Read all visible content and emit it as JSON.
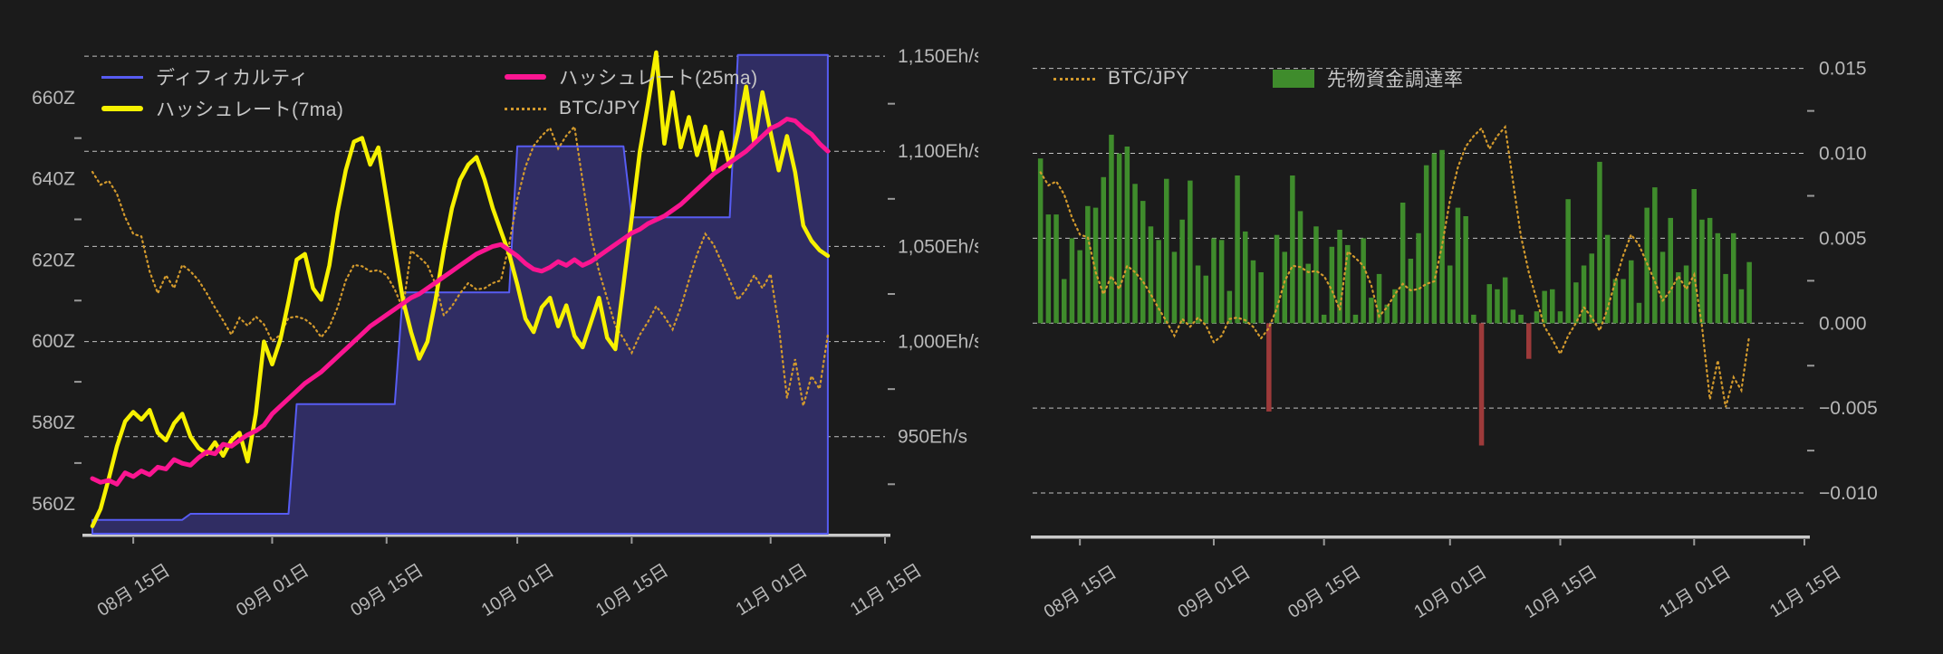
{
  "page": {
    "background": "#1b1b1b"
  },
  "chart_data": {
    "type": [
      "area",
      "line",
      "bar"
    ],
    "dates": [
      "08/10",
      "08/11",
      "08/12",
      "08/13",
      "08/14",
      "08/15",
      "08/16",
      "08/17",
      "08/18",
      "08/19",
      "08/20",
      "08/21",
      "08/22",
      "08/23",
      "08/24",
      "08/25",
      "08/26",
      "08/27",
      "08/28",
      "08/29",
      "08/30",
      "08/31",
      "09/01",
      "09/02",
      "09/03",
      "09/04",
      "09/05",
      "09/06",
      "09/07",
      "09/08",
      "09/09",
      "09/10",
      "09/11",
      "09/12",
      "09/13",
      "09/14",
      "09/15",
      "09/16",
      "09/17",
      "09/18",
      "09/19",
      "09/20",
      "09/21",
      "09/22",
      "09/23",
      "09/24",
      "09/25",
      "09/26",
      "09/27",
      "09/28",
      "09/29",
      "09/30",
      "10/01",
      "10/02",
      "10/03",
      "10/04",
      "10/05",
      "10/06",
      "10/07",
      "10/08",
      "10/09",
      "10/10",
      "10/11",
      "10/12",
      "10/13",
      "10/14",
      "10/15",
      "10/16",
      "10/17",
      "10/18",
      "10/19",
      "10/20",
      "10/21",
      "10/22",
      "10/23",
      "10/24",
      "10/25",
      "10/26",
      "10/27",
      "10/28",
      "10/29",
      "10/30",
      "10/31",
      "11/01",
      "11/02",
      "11/03",
      "11/04",
      "11/05",
      "11/06",
      "11/07",
      "11/08"
    ],
    "x_axis": {
      "tick_labels": [
        "08月 15日",
        "09月 01日",
        "09月 15日",
        "10月 01日",
        "10月 15日",
        "11月 01日",
        "11月 15日"
      ],
      "tick_days": [
        6,
        23,
        37,
        53,
        67,
        84,
        98
      ],
      "domain_days": 98,
      "start_date": "08/09"
    },
    "left_chart": {
      "legend": [
        {
          "label": "ディフィカルティ",
          "color": "#575cf2",
          "style": "line"
        },
        {
          "label": "ハッシュレート(25ma)",
          "color": "#fb1591",
          "style": "thick-line"
        },
        {
          "label": "ハッシュレート(7ma)",
          "color": "#f7f100",
          "style": "thick-line"
        },
        {
          "label": "BTC/JPY",
          "color": "#d39a2d",
          "style": "dotted"
        }
      ],
      "y_left": {
        "unit": "Z",
        "tick_labels": [
          "560Z",
          "580Z",
          "600Z",
          "620Z",
          "640Z",
          "660Z"
        ],
        "tick_values": [
          560,
          580,
          600,
          620,
          640,
          660
        ],
        "domain": [
          552.6,
          675.1
        ],
        "minor_values": [
          570,
          590,
          610,
          630,
          650
        ]
      },
      "y_right": {
        "unit": "Eh/s",
        "tick_labels": [
          "950Eh/s",
          "1,000Eh/s",
          "1,050Eh/s",
          "1,100Eh/s",
          "1,150Eh/s"
        ],
        "tick_values": [
          950,
          1000,
          1050,
          1100,
          1150
        ],
        "domain": [
          899,
          1160.5
        ],
        "minor_values": [
          925,
          975,
          1025,
          1075,
          1125
        ],
        "gridlines": true
      },
      "btc_hidden_domain": [
        15.25,
        19.1
      ],
      "series": {
        "difficulty_z": [
          556,
          556,
          556,
          556,
          556,
          556,
          556,
          556,
          556,
          556,
          556,
          556,
          557.5,
          557.5,
          557.5,
          557.5,
          557.5,
          557.5,
          557.5,
          557.5,
          557.5,
          557.5,
          557.5,
          557.5,
          557.5,
          584.5,
          584.5,
          584.5,
          584.5,
          584.5,
          584.5,
          584.5,
          584.5,
          584.5,
          584.5,
          584.5,
          584.5,
          584.5,
          612,
          612,
          612,
          612,
          612,
          612,
          612,
          612,
          612,
          612,
          612,
          612,
          612,
          612,
          648,
          648,
          648,
          648,
          648,
          648,
          648,
          648,
          648,
          648,
          648,
          648,
          648,
          648,
          630.5,
          630.5,
          630.5,
          630.5,
          630.5,
          630.5,
          630.5,
          630.5,
          630.5,
          630.5,
          630.5,
          630.5,
          630.5,
          670.5,
          670.5,
          670.5,
          670.5,
          670.5,
          670.5,
          670.5,
          670.5,
          670.5,
          670.5,
          670.5,
          670.5
        ],
        "hashrate_7ma": [
          903,
          912,
          928,
          945,
          958,
          963,
          959,
          964,
          952,
          948,
          957,
          962,
          950,
          944,
          941,
          947,
          940,
          948,
          952,
          937,
          962,
          1000,
          988,
          1001,
          1021,
          1043,
          1046,
          1028,
          1022,
          1040,
          1068,
          1090,
          1105,
          1107,
          1093,
          1102,
          1075,
          1048,
          1022,
          1005,
          991,
          1000,
          1022,
          1048,
          1070,
          1085,
          1093,
          1097,
          1085,
          1070,
          1058,
          1046,
          1030,
          1012,
          1005,
          1018,
          1023,
          1008,
          1019,
          1003,
          997,
          1010,
          1023,
          1002,
          996,
          1030,
          1065,
          1100,
          1125,
          1152,
          1104,
          1131,
          1102,
          1118,
          1098,
          1113,
          1090,
          1110,
          1092,
          1110,
          1134,
          1104,
          1131,
          1110,
          1090,
          1108,
          1089,
          1061,
          1053,
          1048,
          1045
        ],
        "hashrate_25ma": [
          928,
          926,
          927,
          925,
          931,
          929,
          932,
          930,
          934,
          933,
          938,
          936,
          935,
          939,
          942,
          941,
          946,
          945,
          948,
          951,
          953,
          956,
          962,
          966,
          970,
          974,
          978,
          981,
          984,
          988,
          992,
          996,
          1000,
          1004,
          1008,
          1011,
          1014,
          1017,
          1020,
          1023,
          1025,
          1028,
          1031,
          1034,
          1037,
          1040,
          1043,
          1046,
          1048,
          1050,
          1051,
          1048,
          1045,
          1041,
          1038,
          1037,
          1039,
          1042,
          1040,
          1043,
          1040,
          1042,
          1045,
          1048,
          1051,
          1054,
          1057,
          1059,
          1062,
          1064,
          1066,
          1069,
          1072,
          1076,
          1080,
          1084,
          1088,
          1091,
          1094,
          1097,
          1100,
          1104,
          1108,
          1112,
          1114,
          1117,
          1116,
          1112,
          1109,
          1104,
          1100
        ],
        "btc_jpy_m": [
          18.05,
          17.95,
          17.98,
          17.88,
          17.7,
          17.57,
          17.55,
          17.28,
          17.11,
          17.25,
          17.15,
          17.33,
          17.28,
          17.21,
          17.11,
          17.0,
          16.9,
          16.79,
          16.92,
          16.86,
          16.93,
          16.87,
          16.74,
          16.79,
          16.92,
          16.93,
          16.91,
          16.86,
          16.77,
          16.85,
          17.0,
          17.21,
          17.33,
          17.32,
          17.28,
          17.29,
          17.25,
          17.14,
          16.99,
          17.44,
          17.39,
          17.33,
          17.18,
          16.94,
          17.01,
          17.11,
          17.19,
          17.14,
          17.15,
          17.19,
          17.21,
          17.49,
          17.84,
          18.09,
          18.25,
          18.33,
          18.39,
          18.23,
          18.33,
          18.4,
          17.98,
          17.56,
          17.28,
          17.07,
          16.86,
          16.76,
          16.65,
          16.79,
          16.89,
          17.01,
          16.93,
          16.83,
          17.0,
          17.21,
          17.41,
          17.57,
          17.49,
          17.35,
          17.21,
          17.06,
          17.14,
          17.25,
          17.15,
          17.26,
          16.86,
          16.3,
          16.6,
          16.24,
          16.47,
          16.37,
          16.79
        ]
      }
    },
    "right_chart": {
      "legend": [
        {
          "label": "BTC/JPY",
          "color": "#d39a2d",
          "style": "dotted"
        },
        {
          "label": "先物資金調達率",
          "color": "#3f8c2c",
          "style": "rect"
        }
      ],
      "y_right": {
        "tick_labels": [
          "−0.010",
          "−0.005",
          "0.000",
          "0.005",
          "0.010",
          "0.015"
        ],
        "tick_values": [
          -0.01,
          -0.005,
          0,
          0.005,
          0.01,
          0.015
        ],
        "domain": [
          -0.0125,
          0.0169
        ],
        "minor_values": [
          -0.0075,
          -0.0025,
          0.0025,
          0.0075,
          0.0125
        ],
        "gridlines": true
      },
      "bar_colors": {
        "positive": "#3f8c2c",
        "negative": "#9d3a3a"
      },
      "btc_hidden_domain": [
        15.25,
        19.1
      ],
      "series": {
        "funding_rate": [
          0.0097,
          0.0064,
          0.0064,
          0.0026,
          0.005,
          0.0043,
          0.0069,
          0.0068,
          0.0086,
          0.0111,
          0.01,
          0.0104,
          0.0082,
          0.0072,
          0.0057,
          0.0049,
          0.0085,
          0.0042,
          0.0061,
          0.0084,
          0.0034,
          0.0028,
          0.005,
          0.0049,
          0.0019,
          0.0087,
          0.0054,
          0.0037,
          0.003,
          -0.0052,
          0.0052,
          0.0042,
          0.0087,
          0.0066,
          0.0035,
          0.0057,
          0.0005,
          0.0045,
          0.0055,
          0.0046,
          0.0005,
          0.005,
          0.0015,
          0.0029,
          0.0011,
          0.002,
          0.0071,
          0.0038,
          0.0053,
          0.0093,
          0.01,
          0.0102,
          0.0034,
          0.0068,
          0.0063,
          0.0005,
          -0.0072,
          0.0023,
          0.002,
          0.0027,
          0.0008,
          0.0005,
          -0.0021,
          0.0007,
          0.0019,
          0.002,
          0.0007,
          0.0073,
          0.0024,
          0.0034,
          0.0041,
          0.0095,
          0.0052,
          0.0026,
          0.0026,
          0.0037,
          0.0012,
          0.0068,
          0.008,
          0.0042,
          0.0062,
          0.003,
          0.0034,
          0.0079,
          0.0061,
          0.0062,
          0.0053,
          0.0029,
          0.0053,
          0.002,
          0.0036
        ],
        "btc_jpy_m": "same-as-left"
      }
    },
    "style": {
      "background": "#1b1b1b",
      "grid_color": "#dedede",
      "axis_line_color": "#c9c9c9",
      "tick_label_color": "#b8b8b8",
      "legend_text_color": "#c6c6c6",
      "difficulty_fill": "#302d63",
      "difficulty_stroke": "#575cf2",
      "hashrate7_color": "#f7f100",
      "hashrate25_color": "#fb1591",
      "btc_color": "#d39a2d"
    }
  }
}
